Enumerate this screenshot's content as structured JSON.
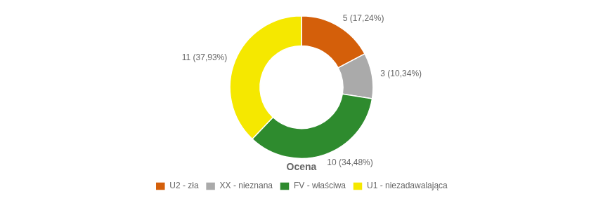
{
  "chart_data": {
    "type": "doughnut",
    "title": "Ocena",
    "categories": [
      "U2 - zła",
      "XX - nieznana",
      "FV - właściwa",
      "U1 - niezadawalająca"
    ],
    "values": [
      5,
      3,
      10,
      11
    ],
    "value_labels": [
      "5 (17,24%)",
      "3 (10,34%)",
      "10 (34,48%)",
      "11 (37,93%)"
    ],
    "colors": [
      "#d45f0a",
      "#aaaaaa",
      "#2e8b2e",
      "#f5e800"
    ],
    "data_labels": true,
    "legend": "bottom"
  }
}
